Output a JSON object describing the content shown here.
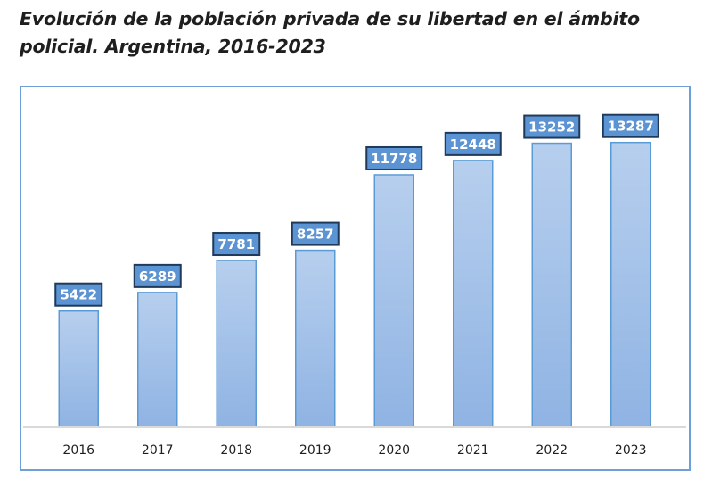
{
  "chart_data": {
    "type": "bar",
    "title": "Evolución de la población privada de su libertad en el ámbito policial. Argentina, 2016-2023",
    "xlabel": "",
    "ylabel": "",
    "categories": [
      "2016",
      "2017",
      "2018",
      "2019",
      "2020",
      "2021",
      "2022",
      "2023"
    ],
    "values": [
      5422,
      6289,
      7781,
      8257,
      11778,
      12448,
      13252,
      13287
    ],
    "data_labels": [
      "5422",
      "6289",
      "7781",
      "8257",
      "11778",
      "12448",
      "13252",
      "13287"
    ],
    "ylim": [
      0,
      14000
    ],
    "grid": false,
    "legend": "none",
    "colors": {
      "bar_top": "#b7cfee",
      "bar_bottom": "#8fb3e3",
      "bar_border": "#5b9bd5",
      "label_fill": "#5b93d3",
      "label_border": "#1f3a5a",
      "axis_line": "#d9d9d9",
      "frame": "#6f9fd8"
    }
  }
}
